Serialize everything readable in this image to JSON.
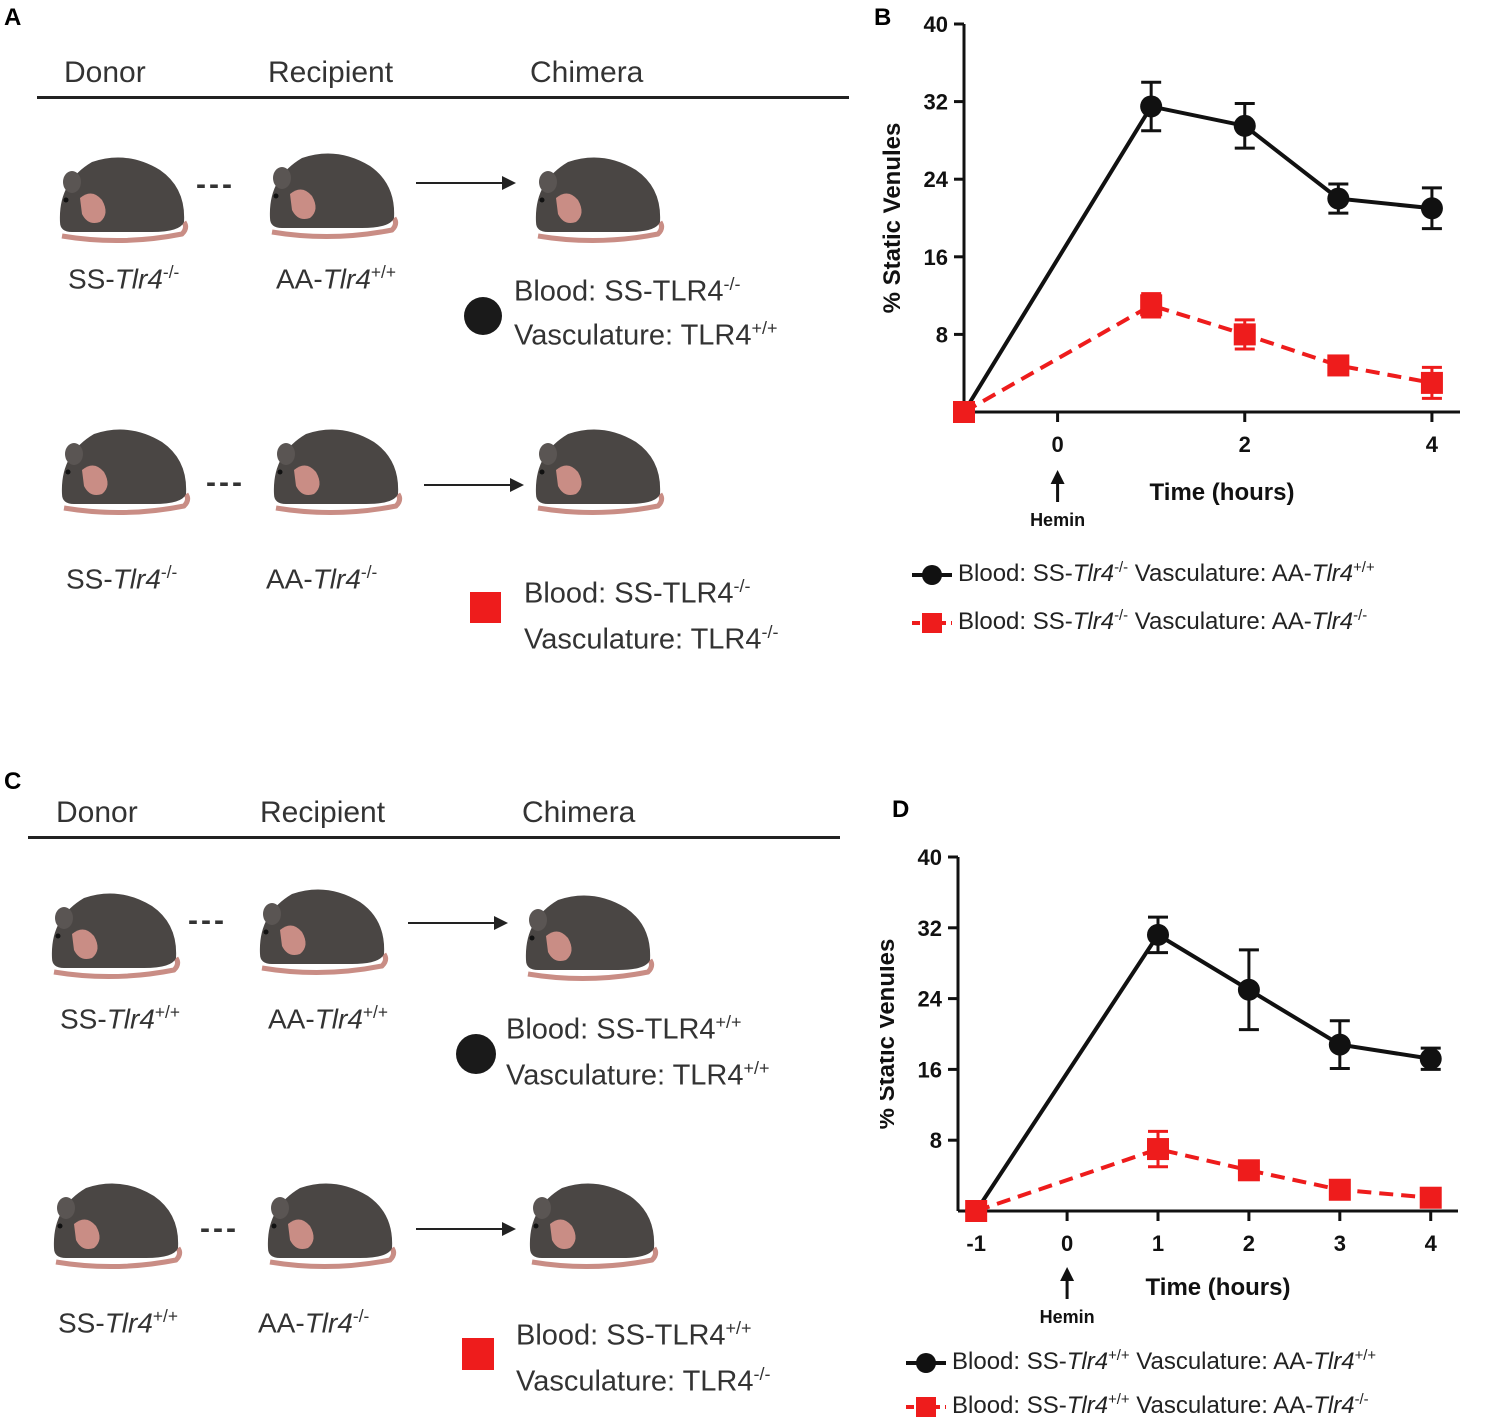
{
  "panel_a": {
    "letter": "A",
    "headers": [
      "Donor",
      "Recipient",
      "Chimera"
    ],
    "row1": {
      "donor_prefix": "SS-",
      "donor_gene": "Tlr4",
      "donor_sup": "-/-",
      "recipient_prefix": "AA-",
      "recipient_gene": "Tlr4",
      "recipient_sup": "+/+",
      "blood_prefix": "Blood: SS-TLR4",
      "blood_sup": "-/-",
      "vasc_prefix": "Vasculature: TLR4",
      "vasc_sup": "+/+",
      "marker": "circle"
    },
    "row2": {
      "donor_prefix": "SS-",
      "donor_gene": "Tlr4",
      "donor_sup": "-/-",
      "recipient_prefix": "AA-",
      "recipient_gene": "Tlr4",
      "recipient_sup": "-/-",
      "blood_prefix": "Blood: SS-TLR4",
      "blood_sup": "-/-",
      "vasc_prefix": "Vasculature: TLR4",
      "vasc_sup": "-/-",
      "marker": "square"
    }
  },
  "panel_c": {
    "letter": "C",
    "headers": [
      "Donor",
      "Recipient",
      "Chimera"
    ],
    "row1": {
      "donor_prefix": "SS-",
      "donor_gene": "Tlr4",
      "donor_sup": "+/+",
      "recipient_prefix": "AA-",
      "recipient_gene": "Tlr4",
      "recipient_sup": "+/+",
      "blood_prefix": "Blood: SS-TLR4",
      "blood_sup": "+/+",
      "vasc_prefix": "Vasculature: TLR4",
      "vasc_sup": "+/+",
      "marker": "circle"
    },
    "row2": {
      "donor_prefix": "SS-",
      "donor_gene": "Tlr4",
      "donor_sup": "+/+",
      "recipient_prefix": "AA-",
      "recipient_gene": "Tlr4",
      "recipient_sup": "-/-",
      "blood_prefix": "Blood: SS-TLR4",
      "blood_sup": "+/+",
      "vasc_prefix": "Vasculature: TLR4",
      "vasc_sup": "-/-",
      "marker": "square"
    }
  },
  "colors": {
    "black_series": "#111111",
    "red_series": "#ee1c1c",
    "mouse_body": "#4a4644",
    "mouse_tail": "#c98d85"
  },
  "chart_data": [
    {
      "panel": "B",
      "type": "line",
      "xlabel": "Time (hours)",
      "ylabel": "% Static Venules",
      "xlim": [
        -1,
        4.3
      ],
      "ylim": [
        0,
        40
      ],
      "xticks": [
        0,
        2,
        4
      ],
      "xtick_labels": [
        "0",
        "2",
        "4"
      ],
      "yticks": [
        8,
        16,
        24,
        32,
        40
      ],
      "ytick_labels": [
        "8",
        "16",
        "24",
        "32",
        "40"
      ],
      "annotation": "Hemin",
      "annotation_x": 0,
      "series": [
        {
          "name": "Blood: SS-Tlr4-/- Vasculature: AA-Tlr4+/+",
          "legend_parts": [
            "Blood: SS-",
            "Tlr4",
            "-/-",
            " Vasculature: AA-",
            "Tlr4",
            "+/+"
          ],
          "marker": "circle",
          "style": "solid",
          "x": [
            -1,
            1,
            2,
            3,
            4
          ],
          "y": [
            0,
            31.5,
            29.5,
            22,
            21
          ],
          "err": [
            0,
            2.5,
            2.3,
            1.5,
            2.1
          ]
        },
        {
          "name": "Blood: SS-Tlr4-/- Vasculature: AA-Tlr4-/-",
          "legend_parts": [
            "Blood: SS-",
            "Tlr4",
            "-/-",
            " Vasculature: AA-",
            "Tlr4",
            "-/-"
          ],
          "marker": "square",
          "style": "dashed",
          "x": [
            -1,
            1,
            2,
            3,
            4
          ],
          "y": [
            0,
            11,
            8,
            4.8,
            3
          ],
          "err": [
            0,
            1.2,
            1.5,
            0.6,
            1.6
          ]
        }
      ]
    },
    {
      "panel": "D",
      "type": "line",
      "xlabel": "Time (hours)",
      "ylabel": "% Static Venules",
      "xlim": [
        -1.2,
        4.3
      ],
      "ylim": [
        0,
        40
      ],
      "xticks": [
        -1,
        0,
        1,
        2,
        3,
        4
      ],
      "xtick_labels": [
        "-1",
        "0",
        "1",
        "2",
        "3",
        "4"
      ],
      "yticks": [
        8,
        16,
        24,
        32,
        40
      ],
      "ytick_labels": [
        "8",
        "16",
        "24",
        "32",
        "40"
      ],
      "annotation": "Hemin",
      "annotation_x": 0,
      "series": [
        {
          "name": "Blood: SS-Tlr4+/+ Vasculature: AA-Tlr4+/+",
          "legend_parts": [
            "Blood: SS-",
            "Tlr4",
            "+/+",
            " Vasculature: AA-",
            "Tlr4",
            "+/+"
          ],
          "marker": "circle",
          "style": "solid",
          "x": [
            -1,
            1,
            2,
            3,
            4
          ],
          "y": [
            0,
            31.2,
            25,
            18.8,
            17.2
          ],
          "err": [
            0,
            2,
            4.5,
            2.7,
            1.2
          ]
        },
        {
          "name": "Blood: SS-Tlr4+/+ Vasculature: AA-Tlr4-/-",
          "legend_parts": [
            "Blood: SS-",
            "Tlr4",
            "+/+",
            " Vasculature: AA-",
            "Tlr4",
            "-/-"
          ],
          "marker": "square",
          "style": "dashed",
          "x": [
            -1,
            1,
            2,
            3,
            4
          ],
          "y": [
            0,
            7,
            4.6,
            2.4,
            1.5
          ],
          "err": [
            0,
            2,
            0.5,
            0.4,
            0.4
          ]
        }
      ]
    }
  ]
}
